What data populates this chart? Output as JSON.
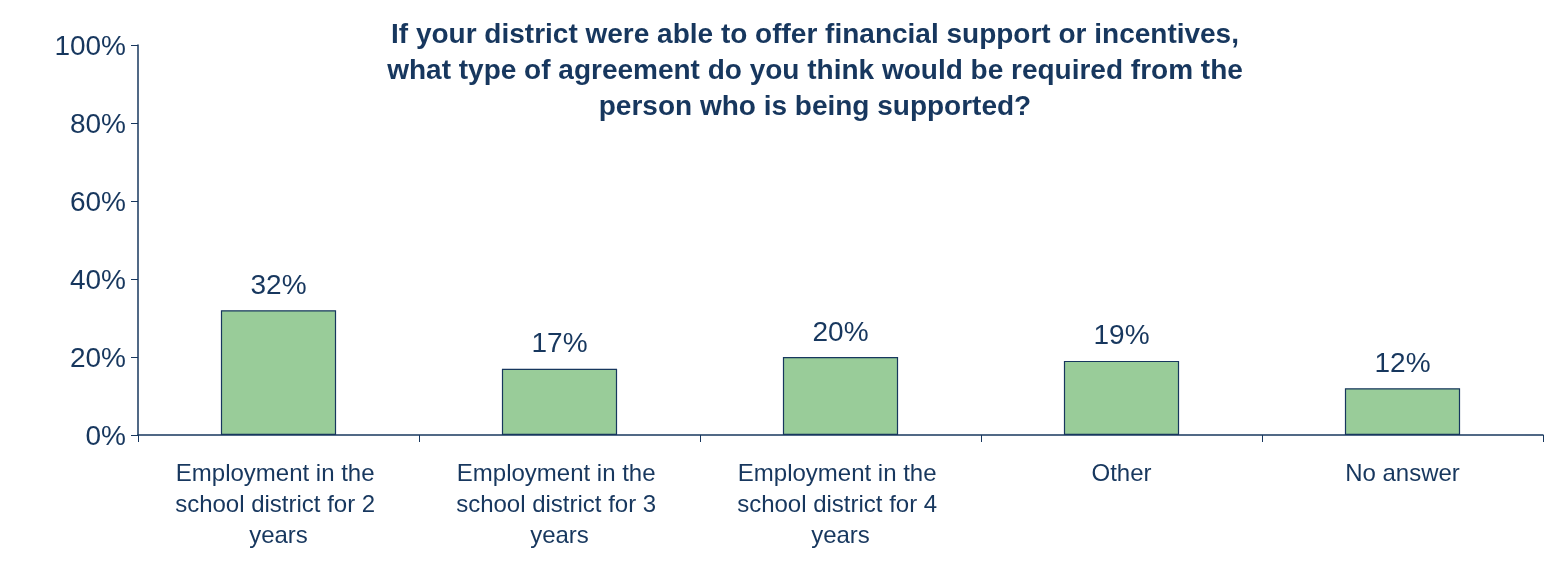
{
  "chart_data": {
    "type": "bar",
    "title": "If your district were able to offer financial support or incentives,\nwhat type of agreement do you think would be required from the\nperson who is being supported?",
    "categories": [
      "Employment in the school district for 2 years",
      "Employment in the school district for 3 years",
      "Employment in the school district for 4 years",
      "Other",
      "No answer"
    ],
    "values": [
      32,
      17,
      20,
      19,
      12
    ],
    "value_labels": [
      "32%",
      "17%",
      "20%",
      "19%",
      "12%"
    ],
    "color": "#99cc99",
    "ylim": [
      0,
      100
    ],
    "yticks": [
      {
        "value": 0,
        "label": "0%"
      },
      {
        "value": 20,
        "label": "20%"
      },
      {
        "value": 40,
        "label": "40%"
      },
      {
        "value": 60,
        "label": "60%"
      },
      {
        "value": 80,
        "label": "80%"
      },
      {
        "value": 100,
        "label": "100%"
      }
    ],
    "grid": false
  }
}
